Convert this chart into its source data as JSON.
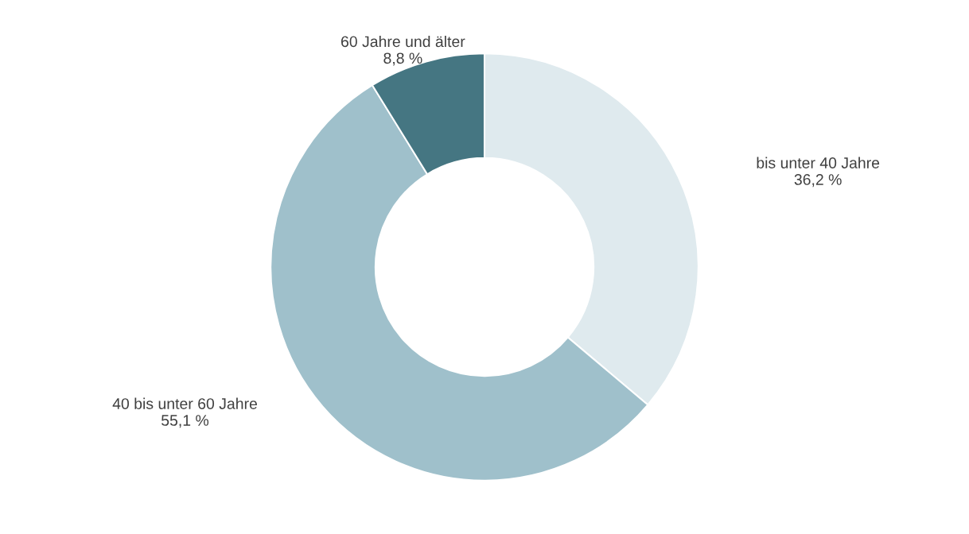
{
  "chart_data": {
    "type": "donut",
    "categories": [
      "bis unter 40 Jahre",
      "40 bis unter 60 Jahre",
      "60 Jahre und älter"
    ],
    "values": [
      36.2,
      55.1,
      8.8
    ],
    "value_labels": [
      "36,2 %",
      "55,1 %",
      "8,8 %"
    ],
    "colors": [
      "#dfeaee",
      "#9fc0cb",
      "#457682"
    ]
  }
}
